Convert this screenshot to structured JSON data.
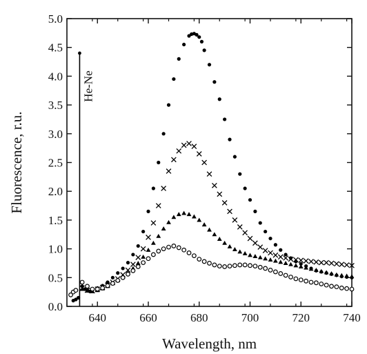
{
  "chart_data": {
    "type": "scatter",
    "xlabel": "Wavelength, nm",
    "ylabel": "Fluorescence, r.u.",
    "xlim": [
      628,
      740
    ],
    "ylim": [
      0.0,
      5.0
    ],
    "xticks": [
      640,
      660,
      680,
      700,
      720,
      740
    ],
    "xtick_labels": [
      "640",
      "660",
      "680",
      "700",
      "720",
      "740"
    ],
    "yticks": [
      0.0,
      0.5,
      1.0,
      1.5,
      2.0,
      2.5,
      3.0,
      3.5,
      4.0,
      4.5,
      5.0
    ],
    "ytick_labels": [
      "0.0",
      "0.5",
      "1.0",
      "1.5",
      "2.0",
      "2.5",
      "3.0",
      "3.5",
      "4.0",
      "4.5",
      "5.0"
    ],
    "grid": false,
    "annotation": {
      "text": "He-Ne",
      "x": 633,
      "y_top": 4.4,
      "y_bottom": 0.0
    },
    "series": [
      {
        "marker": "filled-circle",
        "x": [
          630.5,
          631.5,
          632.5,
          634,
          635,
          636,
          637,
          638,
          640,
          642,
          644,
          646,
          648,
          650,
          652,
          654,
          656,
          658,
          660,
          662,
          664,
          666,
          668,
          670,
          672,
          674,
          676,
          677,
          678,
          679,
          680,
          681,
          682,
          684,
          686,
          688,
          690,
          692,
          694,
          696,
          698,
          700,
          702,
          704,
          706,
          708,
          710,
          712,
          714,
          716,
          718,
          720,
          722,
          724,
          726,
          728,
          730,
          732,
          734,
          736,
          738,
          740
        ],
        "y": [
          0.1,
          0.12,
          0.15,
          0.35,
          0.3,
          0.28,
          0.26,
          0.28,
          0.32,
          0.36,
          0.42,
          0.5,
          0.58,
          0.66,
          0.76,
          0.9,
          1.05,
          1.3,
          1.65,
          2.05,
          2.5,
          3.0,
          3.5,
          3.95,
          4.3,
          4.55,
          4.7,
          4.73,
          4.74,
          4.72,
          4.68,
          4.6,
          4.45,
          4.2,
          3.9,
          3.6,
          3.25,
          2.9,
          2.6,
          2.3,
          2.05,
          1.85,
          1.65,
          1.45,
          1.3,
          1.18,
          1.07,
          0.98,
          0.9,
          0.84,
          0.78,
          0.74,
          0.7,
          0.66,
          0.62,
          0.6,
          0.58,
          0.56,
          0.54,
          0.52,
          0.51,
          0.5
        ]
      },
      {
        "marker": "cross",
        "x": [
          634,
          636,
          638,
          640,
          642,
          644,
          646,
          648,
          650,
          652,
          654,
          656,
          658,
          660,
          662,
          664,
          666,
          668,
          670,
          672,
          674,
          676,
          678,
          680,
          682,
          684,
          686,
          688,
          690,
          692,
          694,
          696,
          698,
          700,
          702,
          704,
          706,
          708,
          710,
          712,
          714,
          716,
          718,
          720,
          722,
          724,
          726,
          728,
          730,
          732,
          734,
          736,
          738,
          740
        ],
        "y": [
          0.32,
          0.28,
          0.27,
          0.3,
          0.33,
          0.37,
          0.42,
          0.48,
          0.55,
          0.63,
          0.73,
          0.85,
          1.0,
          1.2,
          1.45,
          1.75,
          2.05,
          2.35,
          2.55,
          2.7,
          2.8,
          2.83,
          2.78,
          2.65,
          2.5,
          2.3,
          2.1,
          1.95,
          1.8,
          1.65,
          1.5,
          1.38,
          1.28,
          1.18,
          1.1,
          1.03,
          0.97,
          0.93,
          0.89,
          0.86,
          0.84,
          0.82,
          0.81,
          0.8,
          0.79,
          0.78,
          0.77,
          0.76,
          0.76,
          0.75,
          0.74,
          0.73,
          0.72,
          0.71
        ]
      },
      {
        "marker": "filled-triangle",
        "x": [
          634,
          636,
          638,
          640,
          642,
          644,
          646,
          648,
          650,
          652,
          654,
          656,
          658,
          660,
          662,
          664,
          666,
          668,
          670,
          672,
          674,
          676,
          678,
          680,
          682,
          684,
          686,
          688,
          690,
          692,
          694,
          696,
          698,
          700,
          702,
          704,
          706,
          708,
          710,
          712,
          714,
          716,
          718,
          720,
          722,
          724,
          726,
          728,
          730,
          732,
          734,
          736,
          738,
          740
        ],
        "y": [
          0.3,
          0.27,
          0.26,
          0.28,
          0.31,
          0.35,
          0.4,
          0.45,
          0.51,
          0.58,
          0.66,
          0.75,
          0.86,
          0.98,
          1.1,
          1.22,
          1.35,
          1.46,
          1.55,
          1.6,
          1.62,
          1.6,
          1.56,
          1.5,
          1.42,
          1.33,
          1.25,
          1.17,
          1.1,
          1.04,
          0.99,
          0.95,
          0.92,
          0.89,
          0.87,
          0.85,
          0.83,
          0.81,
          0.79,
          0.77,
          0.75,
          0.73,
          0.71,
          0.69,
          0.67,
          0.65,
          0.63,
          0.61,
          0.59,
          0.57,
          0.55,
          0.54,
          0.53,
          0.52
        ]
      },
      {
        "marker": "open-circle",
        "x": [
          629.5,
          630.5,
          631.5,
          634,
          636,
          638,
          640,
          642,
          644,
          646,
          648,
          650,
          652,
          654,
          656,
          658,
          660,
          662,
          664,
          666,
          668,
          670,
          672,
          674,
          676,
          678,
          680,
          682,
          684,
          686,
          688,
          690,
          692,
          694,
          696,
          698,
          700,
          702,
          704,
          706,
          708,
          710,
          712,
          714,
          716,
          718,
          720,
          722,
          724,
          726,
          728,
          730,
          732,
          734,
          736,
          738,
          740
        ],
        "y": [
          0.2,
          0.25,
          0.28,
          0.42,
          0.35,
          0.3,
          0.3,
          0.32,
          0.36,
          0.4,
          0.45,
          0.5,
          0.56,
          0.62,
          0.69,
          0.76,
          0.83,
          0.9,
          0.96,
          1.0,
          1.03,
          1.05,
          1.02,
          0.98,
          0.93,
          0.88,
          0.82,
          0.78,
          0.75,
          0.72,
          0.7,
          0.69,
          0.7,
          0.71,
          0.72,
          0.72,
          0.71,
          0.7,
          0.68,
          0.66,
          0.63,
          0.6,
          0.57,
          0.54,
          0.51,
          0.48,
          0.46,
          0.44,
          0.42,
          0.41,
          0.39,
          0.37,
          0.35,
          0.34,
          0.32,
          0.31,
          0.3
        ]
      }
    ]
  }
}
